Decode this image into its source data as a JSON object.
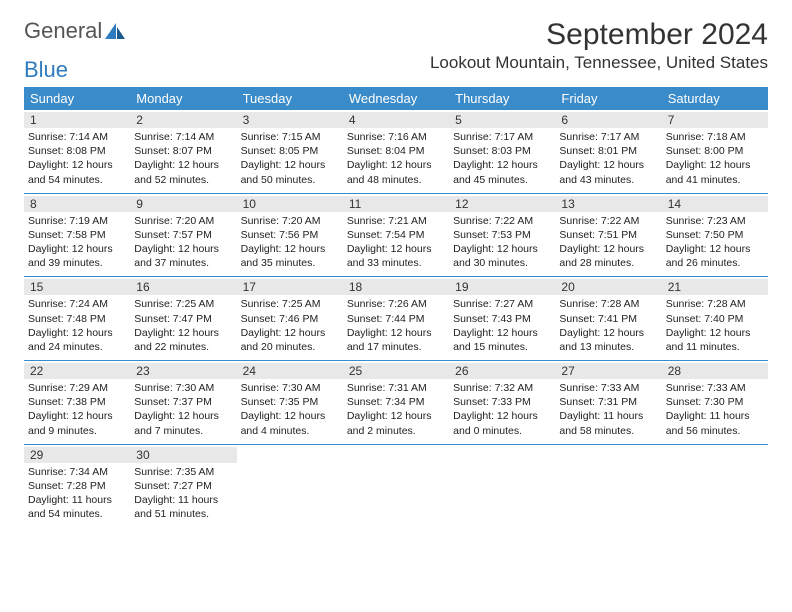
{
  "logo": {
    "text1": "General",
    "text2": "Blue"
  },
  "title": "September 2024",
  "location": "Lookout Mountain, Tennessee, United States",
  "colors": {
    "header_bg": "#3a8bc9",
    "header_text": "#ffffff",
    "daynum_bg": "#e8e8e8",
    "border": "#3a8bc9",
    "logo_gray": "#555555",
    "logo_blue": "#2f7bbf"
  },
  "weekdays": [
    "Sunday",
    "Monday",
    "Tuesday",
    "Wednesday",
    "Thursday",
    "Friday",
    "Saturday"
  ],
  "weeks": [
    [
      {
        "n": "1",
        "sr": "7:14 AM",
        "ss": "8:08 PM",
        "dl": "12 hours and 54 minutes."
      },
      {
        "n": "2",
        "sr": "7:14 AM",
        "ss": "8:07 PM",
        "dl": "12 hours and 52 minutes."
      },
      {
        "n": "3",
        "sr": "7:15 AM",
        "ss": "8:05 PM",
        "dl": "12 hours and 50 minutes."
      },
      {
        "n": "4",
        "sr": "7:16 AM",
        "ss": "8:04 PM",
        "dl": "12 hours and 48 minutes."
      },
      {
        "n": "5",
        "sr": "7:17 AM",
        "ss": "8:03 PM",
        "dl": "12 hours and 45 minutes."
      },
      {
        "n": "6",
        "sr": "7:17 AM",
        "ss": "8:01 PM",
        "dl": "12 hours and 43 minutes."
      },
      {
        "n": "7",
        "sr": "7:18 AM",
        "ss": "8:00 PM",
        "dl": "12 hours and 41 minutes."
      }
    ],
    [
      {
        "n": "8",
        "sr": "7:19 AM",
        "ss": "7:58 PM",
        "dl": "12 hours and 39 minutes."
      },
      {
        "n": "9",
        "sr": "7:20 AM",
        "ss": "7:57 PM",
        "dl": "12 hours and 37 minutes."
      },
      {
        "n": "10",
        "sr": "7:20 AM",
        "ss": "7:56 PM",
        "dl": "12 hours and 35 minutes."
      },
      {
        "n": "11",
        "sr": "7:21 AM",
        "ss": "7:54 PM",
        "dl": "12 hours and 33 minutes."
      },
      {
        "n": "12",
        "sr": "7:22 AM",
        "ss": "7:53 PM",
        "dl": "12 hours and 30 minutes."
      },
      {
        "n": "13",
        "sr": "7:22 AM",
        "ss": "7:51 PM",
        "dl": "12 hours and 28 minutes."
      },
      {
        "n": "14",
        "sr": "7:23 AM",
        "ss": "7:50 PM",
        "dl": "12 hours and 26 minutes."
      }
    ],
    [
      {
        "n": "15",
        "sr": "7:24 AM",
        "ss": "7:48 PM",
        "dl": "12 hours and 24 minutes."
      },
      {
        "n": "16",
        "sr": "7:25 AM",
        "ss": "7:47 PM",
        "dl": "12 hours and 22 minutes."
      },
      {
        "n": "17",
        "sr": "7:25 AM",
        "ss": "7:46 PM",
        "dl": "12 hours and 20 minutes."
      },
      {
        "n": "18",
        "sr": "7:26 AM",
        "ss": "7:44 PM",
        "dl": "12 hours and 17 minutes."
      },
      {
        "n": "19",
        "sr": "7:27 AM",
        "ss": "7:43 PM",
        "dl": "12 hours and 15 minutes."
      },
      {
        "n": "20",
        "sr": "7:28 AM",
        "ss": "7:41 PM",
        "dl": "12 hours and 13 minutes."
      },
      {
        "n": "21",
        "sr": "7:28 AM",
        "ss": "7:40 PM",
        "dl": "12 hours and 11 minutes."
      }
    ],
    [
      {
        "n": "22",
        "sr": "7:29 AM",
        "ss": "7:38 PM",
        "dl": "12 hours and 9 minutes."
      },
      {
        "n": "23",
        "sr": "7:30 AM",
        "ss": "7:37 PM",
        "dl": "12 hours and 7 minutes."
      },
      {
        "n": "24",
        "sr": "7:30 AM",
        "ss": "7:35 PM",
        "dl": "12 hours and 4 minutes."
      },
      {
        "n": "25",
        "sr": "7:31 AM",
        "ss": "7:34 PM",
        "dl": "12 hours and 2 minutes."
      },
      {
        "n": "26",
        "sr": "7:32 AM",
        "ss": "7:33 PM",
        "dl": "12 hours and 0 minutes."
      },
      {
        "n": "27",
        "sr": "7:33 AM",
        "ss": "7:31 PM",
        "dl": "11 hours and 58 minutes."
      },
      {
        "n": "28",
        "sr": "7:33 AM",
        "ss": "7:30 PM",
        "dl": "11 hours and 56 minutes."
      }
    ],
    [
      {
        "n": "29",
        "sr": "7:34 AM",
        "ss": "7:28 PM",
        "dl": "11 hours and 54 minutes."
      },
      {
        "n": "30",
        "sr": "7:35 AM",
        "ss": "7:27 PM",
        "dl": "11 hours and 51 minutes."
      },
      null,
      null,
      null,
      null,
      null
    ]
  ],
  "labels": {
    "sunrise": "Sunrise:",
    "sunset": "Sunset:",
    "daylight": "Daylight:"
  }
}
